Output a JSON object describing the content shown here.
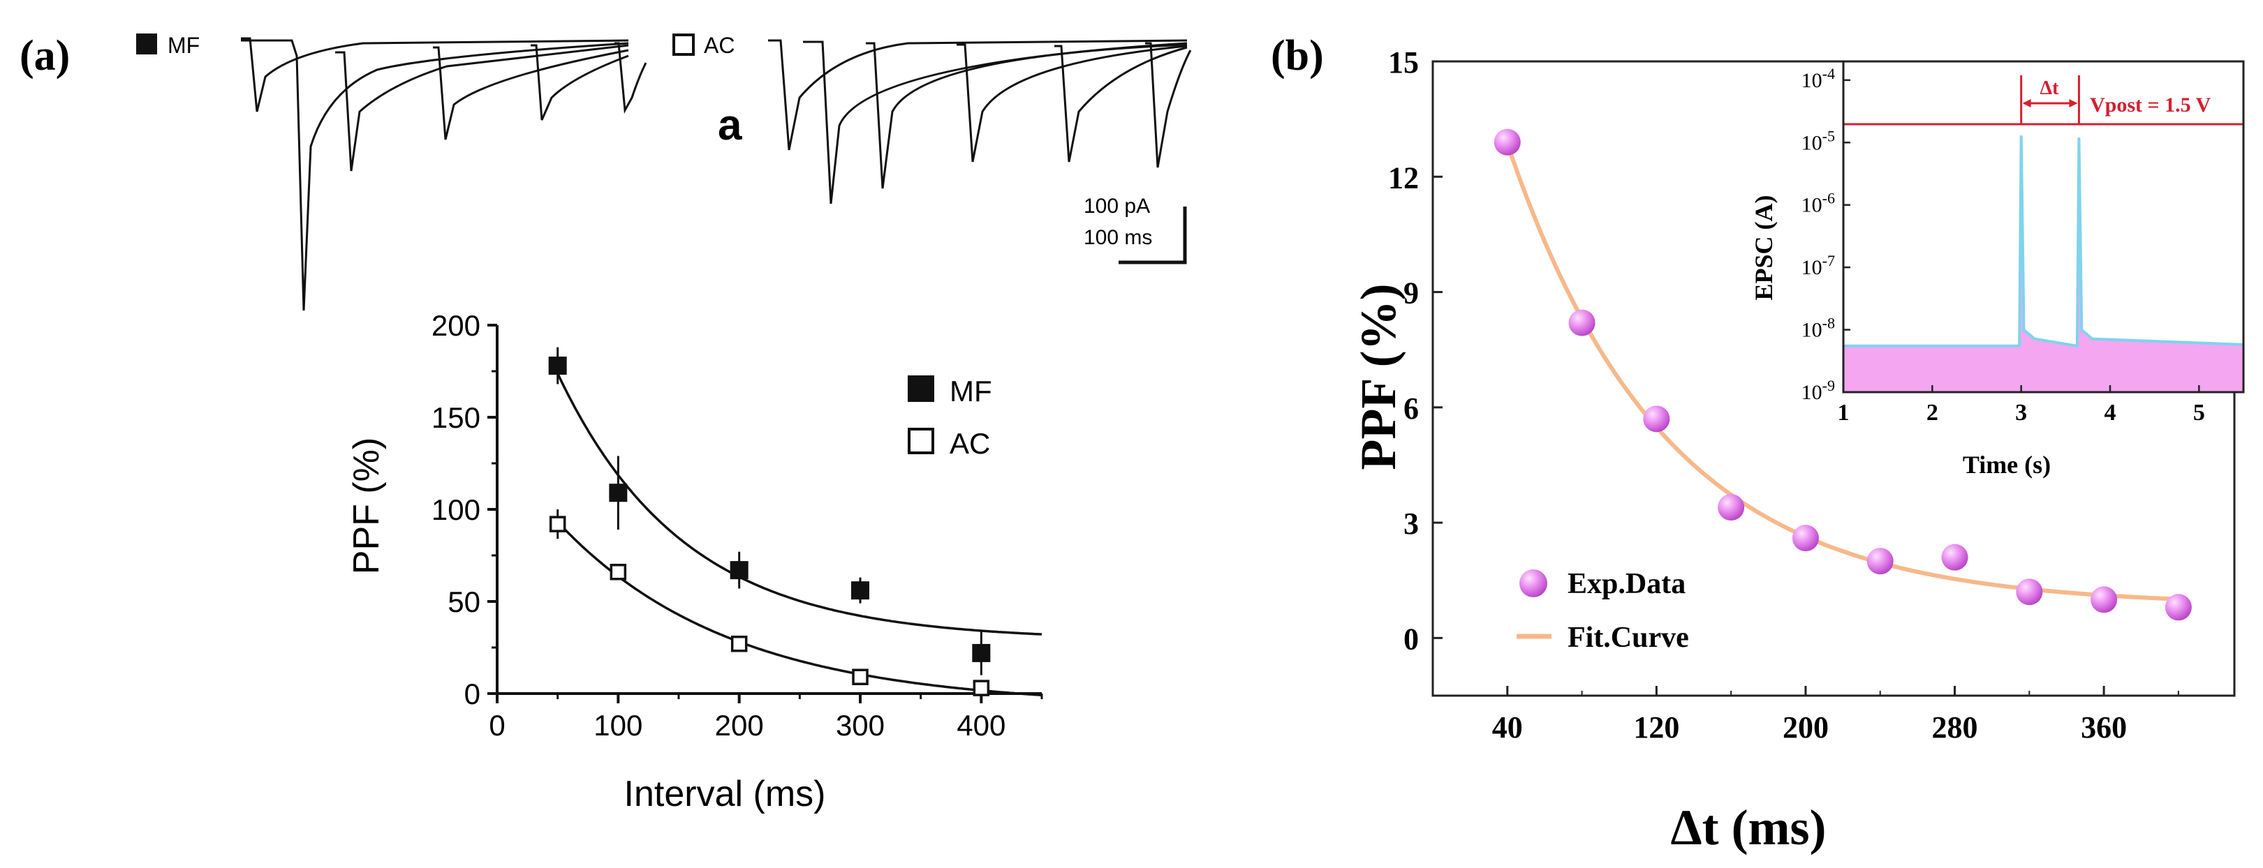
{
  "chart_data": [
    {
      "panel_label": "(a)",
      "type": "scatter",
      "trace_legend": {
        "mf": "MF",
        "ac": "AC"
      },
      "trace_inset_label": "a",
      "scale_bar": {
        "current": "100 pA",
        "time": "100 ms"
      },
      "xlabel": "Interval (ms)",
      "ylabel": "PPF (%)",
      "xlim": [
        0,
        450
      ],
      "ylim": [
        0,
        200
      ],
      "xticks": [
        0,
        100,
        200,
        300,
        400
      ],
      "yticks": [
        0,
        50,
        100,
        150,
        200
      ],
      "legend": {
        "position": "top-right",
        "entries": [
          "MF",
          "AC"
        ]
      },
      "series": [
        {
          "name": "MF",
          "marker": "filled-square",
          "x": [
            50,
            100,
            200,
            300,
            400
          ],
          "y": [
            178,
            109,
            67,
            56,
            22
          ],
          "err": [
            10,
            20,
            10,
            7,
            12
          ]
        },
        {
          "name": "AC",
          "marker": "open-square",
          "x": [
            50,
            100,
            200,
            300,
            400
          ],
          "y": [
            92,
            66,
            27,
            9,
            3
          ],
          "err": [
            8,
            3,
            2,
            2,
            3
          ]
        }
      ],
      "fits": [
        {
          "name": "MF fit",
          "type": "exponential-decay"
        },
        {
          "name": "AC fit",
          "type": "exponential-decay"
        }
      ]
    },
    {
      "panel_label": "(b)",
      "type": "scatter",
      "xlabel": "Δt (ms)",
      "ylabel": "PPF (%)",
      "xlim": [
        0,
        430
      ],
      "ylim": [
        -1.5,
        15
      ],
      "xticks": [
        40,
        120,
        200,
        280,
        360
      ],
      "yticks": [
        0,
        3,
        6,
        9,
        12,
        15
      ],
      "legend": {
        "position": "bottom-left",
        "entries": [
          "Exp.Data",
          "Fit.Curve"
        ]
      },
      "series": [
        {
          "name": "Exp.Data",
          "x": [
            40,
            80,
            120,
            160,
            200,
            240,
            280,
            320,
            360,
            400
          ],
          "y": [
            12.9,
            8.2,
            5.7,
            3.4,
            2.6,
            2.0,
            2.1,
            1.2,
            1.0,
            0.8
          ]
        }
      ],
      "fit": {
        "name": "Fit.Curve",
        "type": "exponential-decay"
      },
      "inset": {
        "type": "line",
        "xlabel": "Time (s)",
        "ylabel": "EPSC (A)",
        "xlim": [
          1,
          5.5
        ],
        "xticks": [
          1,
          2,
          3,
          4,
          5
        ],
        "yticks": [
          "10-9",
          "10-8",
          "10-7",
          "10-6",
          "10-5",
          "10-4"
        ],
        "pulse_label": "Δt",
        "vpost": "Vpost = 1.5 V",
        "baseline_A": 5.5e-09,
        "pulses": [
          {
            "t": 3.0,
            "peak_A": 1.3e-05
          },
          {
            "t": 3.65,
            "peak_A": 1.2e-05
          }
        ]
      }
    }
  ]
}
